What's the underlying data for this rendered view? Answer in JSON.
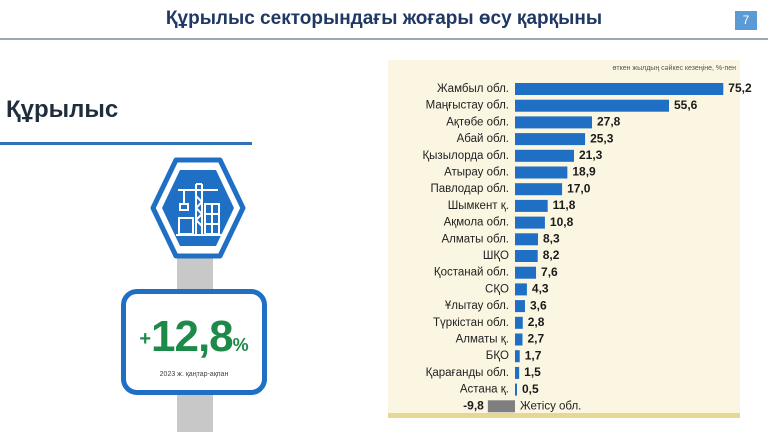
{
  "slide": {
    "title": "Құрылыс секторындағы жоғары өсу қарқыны",
    "page_number": "7",
    "section_title": "Құрылыс"
  },
  "stat": {
    "sign": "+",
    "value": "12,8",
    "unit": "%",
    "note": "2023 ж. қаңтар-ақпан"
  },
  "colors": {
    "title": "#1f3864",
    "accent_blue": "#1f6fc5",
    "bar_positive": "#1f6fc5",
    "bar_negative": "#7f7f7f",
    "stat_green": "#1e8a4a",
    "panel_bg": "#fbf6e2"
  },
  "icons": {
    "hexagon": "construction-crane-icon"
  },
  "chart_data": {
    "type": "bar",
    "orientation": "horizontal",
    "subtitle": "өткен жылдың сәйкес кезеңіне, %-пен",
    "categories": [
      "Жамбыл обл.",
      "Маңғыстау обл.",
      "Ақтөбе обл.",
      "Абай обл.",
      "Қызылорда обл.",
      "Атырау обл.",
      "Павлодар обл.",
      "Шымкент қ.",
      "Ақмола обл.",
      "Алматы обл.",
      "ШҚО",
      "Қостанай обл.",
      "СҚО",
      "Ұлытау обл.",
      "Түркістан обл.",
      "Алматы қ.",
      "БҚО",
      "Қарағанды обл.",
      "Астана қ.",
      "Жетісу обл."
    ],
    "values": [
      75.2,
      55.6,
      27.8,
      25.3,
      21.3,
      18.9,
      17.0,
      11.8,
      10.8,
      8.3,
      8.2,
      7.6,
      4.3,
      3.6,
      2.8,
      2.7,
      1.7,
      1.5,
      0.5,
      -9.8
    ],
    "labels": [
      "75,2",
      "55,6",
      "27,8",
      "25,3",
      "21,3",
      "18,9",
      "17,0",
      "11,8",
      "10,8",
      "8,3",
      "8,2",
      "7,6",
      "4,3",
      "3,6",
      "2,8",
      "2,7",
      "1,7",
      "1,5",
      "0,5",
      "-9,8"
    ],
    "grid": false,
    "legend": "none"
  }
}
